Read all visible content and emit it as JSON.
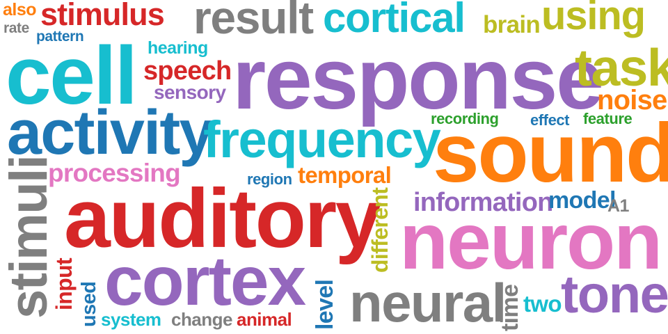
{
  "palette": {
    "red": "#d62728",
    "purple": "#9467bd",
    "cyan": "#17becf",
    "blue": "#1f77b4",
    "orange": "#ff7f0e",
    "pink": "#e377c2",
    "olive": "#bcbd22",
    "green": "#2ca02c",
    "gray": "#7f7f7f"
  },
  "words": [
    {
      "text": "also",
      "color": "#ff7f0e"
    },
    {
      "text": "rate",
      "color": "#7f7f7f"
    },
    {
      "text": "stimulus",
      "color": "#d62728"
    },
    {
      "text": "pattern",
      "color": "#1f77b4"
    },
    {
      "text": "result",
      "color": "#7f7f7f"
    },
    {
      "text": "cortical",
      "color": "#17becf"
    },
    {
      "text": "brain",
      "color": "#bcbd22"
    },
    {
      "text": "using",
      "color": "#bcbd22"
    },
    {
      "text": "hearing",
      "color": "#17becf"
    },
    {
      "text": "cell",
      "color": "#17becf"
    },
    {
      "text": "speech",
      "color": "#d62728"
    },
    {
      "text": "sensory",
      "color": "#9467bd"
    },
    {
      "text": "response",
      "color": "#9467bd"
    },
    {
      "text": "task",
      "color": "#bcbd22"
    },
    {
      "text": "noise",
      "color": "#ff7f0e"
    },
    {
      "text": "recording",
      "color": "#2ca02c"
    },
    {
      "text": "effect",
      "color": "#1f77b4"
    },
    {
      "text": "feature",
      "color": "#2ca02c"
    },
    {
      "text": "activity",
      "color": "#1f77b4"
    },
    {
      "text": "frequency",
      "color": "#17becf"
    },
    {
      "text": "sound",
      "color": "#ff7f0e"
    },
    {
      "text": "processing",
      "color": "#e377c2"
    },
    {
      "text": "region",
      "color": "#1f77b4"
    },
    {
      "text": "temporal",
      "color": "#ff7f0e"
    },
    {
      "text": "stimuli",
      "color": "#7f7f7f"
    },
    {
      "text": "auditory",
      "color": "#d62728"
    },
    {
      "text": "different",
      "color": "#bcbd22"
    },
    {
      "text": "information",
      "color": "#9467bd"
    },
    {
      "text": "model",
      "color": "#1f77b4"
    },
    {
      "text": "A1",
      "color": "#7f7f7f"
    },
    {
      "text": "neuron",
      "color": "#e377c2"
    },
    {
      "text": "input",
      "color": "#d62728"
    },
    {
      "text": "used",
      "color": "#1f77b4"
    },
    {
      "text": "cortex",
      "color": "#9467bd"
    },
    {
      "text": "level",
      "color": "#1f77b4"
    },
    {
      "text": "neural",
      "color": "#7f7f7f"
    },
    {
      "text": "time",
      "color": "#7f7f7f"
    },
    {
      "text": "two",
      "color": "#17becf"
    },
    {
      "text": "tone",
      "color": "#9467bd"
    },
    {
      "text": "system",
      "color": "#17becf"
    },
    {
      "text": "change",
      "color": "#7f7f7f"
    },
    {
      "text": "animal",
      "color": "#d62728"
    }
  ]
}
